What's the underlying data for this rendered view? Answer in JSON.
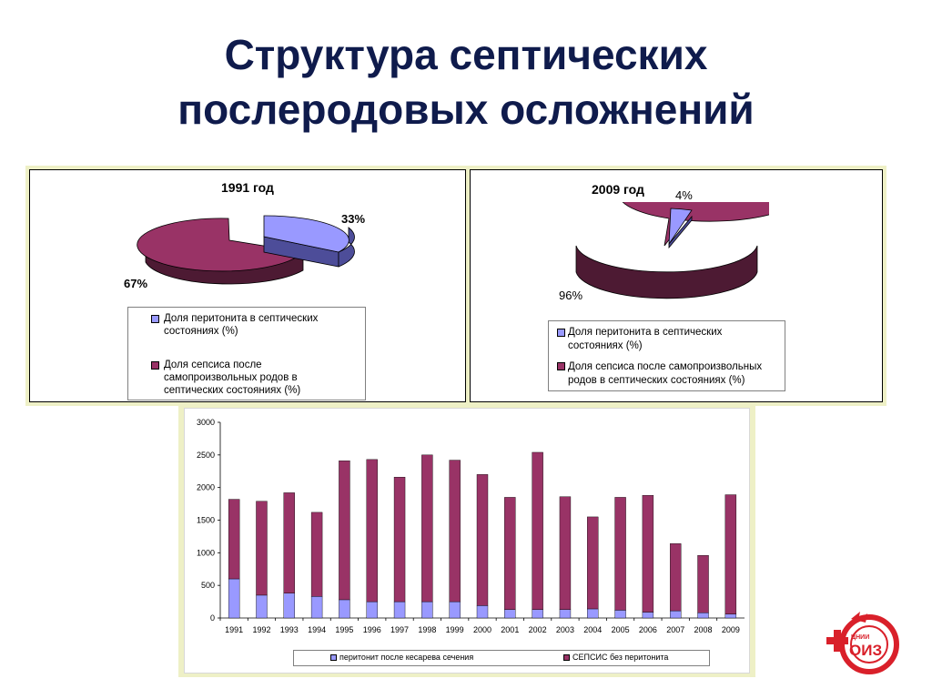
{
  "slide": {
    "title_line1": "Структура септических",
    "title_line2": "послеродовых  осложнений"
  },
  "colors": {
    "peritonit": "#9999ff",
    "sepsis": "#993366",
    "title": "#0f1b4c",
    "panel_bg": "#eef0c6"
  },
  "pie1991": {
    "title": "1991 год",
    "label_peritonit": "33%",
    "label_sepsis": "67%",
    "legend": [
      "Доля перитонита в септических",
      "состояниях (%)",
      "Доля сепсиса после",
      "самопроизвольных родов в",
      "септических состояниях (%)"
    ]
  },
  "pie2009": {
    "title": "2009 год",
    "label_peritonit": "4%",
    "label_sepsis": "96%",
    "legend": [
      "Доля перитонита в септических",
      "состояниях (%)",
      "Доля сепсиса после самопроизвольных",
      "родов в септических состояниях (%)"
    ]
  },
  "bar_legend": {
    "peritonit": "перитонит после  кесарева сечения",
    "sepsis": "СЕПСИС без перитонита"
  },
  "chart_data": [
    {
      "type": "pie",
      "title": "1991 год",
      "categories": [
        "Доля перитонита в септических состояниях (%)",
        "Доля сепсиса после самопроизвольных родов в септических состояниях (%)"
      ],
      "values": [
        33,
        67
      ]
    },
    {
      "type": "pie",
      "title": "2009 год",
      "categories": [
        "Доля перитонита в септических состояниях (%)",
        "Доля сепсиса после самопроизвольных родов в септических состояниях (%)"
      ],
      "values": [
        4,
        96
      ]
    },
    {
      "type": "bar",
      "stacked": true,
      "title": "",
      "categories": [
        "1991",
        "1992",
        "1993",
        "1994",
        "1995",
        "1996",
        "1997",
        "1998",
        "1999",
        "2000",
        "2001",
        "2002",
        "2003",
        "2004",
        "2005",
        "2006",
        "2007",
        "2008",
        "2009"
      ],
      "series": [
        {
          "name": "перитонит после  кесарева сечения",
          "values": [
            600,
            350,
            380,
            330,
            280,
            250,
            250,
            250,
            250,
            190,
            130,
            130,
            130,
            140,
            120,
            90,
            110,
            80,
            60
          ]
        },
        {
          "name": "СЕПСИС без перитонита",
          "values": [
            1220,
            1440,
            1540,
            1290,
            2130,
            2180,
            1910,
            2250,
            2170,
            2010,
            1720,
            2410,
            1730,
            1410,
            1730,
            1790,
            1030,
            880,
            1830
          ]
        }
      ],
      "ylim": [
        0,
        3000
      ],
      "yticks": [
        0,
        500,
        1000,
        1500,
        2000,
        2500,
        3000
      ],
      "legend_position": "bottom"
    }
  ]
}
